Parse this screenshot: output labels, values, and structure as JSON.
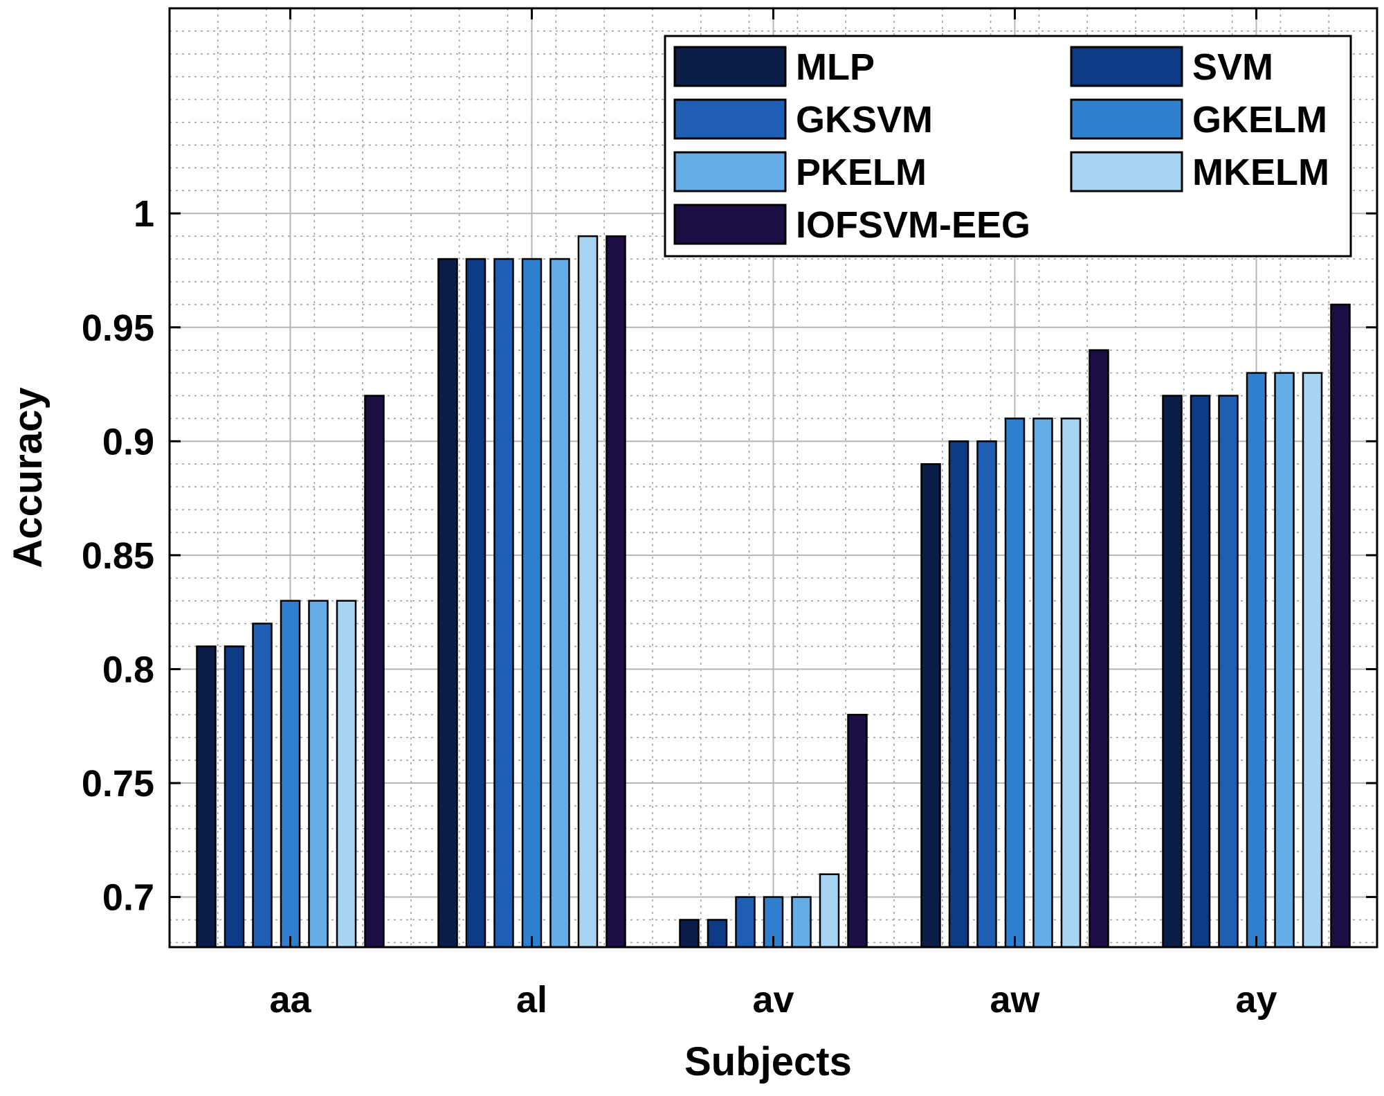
{
  "chart_data": {
    "type": "bar",
    "title": "",
    "xlabel": "Subjects",
    "ylabel": "Accuracy",
    "categories": [
      "aa",
      "al",
      "av",
      "aw",
      "ay"
    ],
    "ylim": [
      0.678,
      1.09
    ],
    "yticks": [
      0.7,
      0.75,
      0.8,
      0.85,
      0.9,
      0.95,
      1.0
    ],
    "ytick_labels": [
      "0.7",
      "0.75",
      "0.8",
      "0.85",
      "0.9",
      "0.95",
      "1"
    ],
    "grid": true,
    "minor_grid": true,
    "legend_position": "top-right",
    "series": [
      {
        "name": "MLP",
        "color": "#0b1e4a",
        "values": [
          0.81,
          0.98,
          0.69,
          0.89,
          0.92
        ]
      },
      {
        "name": "SVM",
        "color": "#0d3a84",
        "values": [
          0.81,
          0.98,
          0.69,
          0.9,
          0.92
        ]
      },
      {
        "name": "GKSVM",
        "color": "#1f5fb3",
        "values": [
          0.82,
          0.98,
          0.7,
          0.9,
          0.92
        ]
      },
      {
        "name": "GKELM",
        "color": "#2f7fcf",
        "values": [
          0.83,
          0.98,
          0.7,
          0.91,
          0.93
        ]
      },
      {
        "name": "PKELM",
        "color": "#64ade6",
        "values": [
          0.83,
          0.98,
          0.7,
          0.91,
          0.93
        ]
      },
      {
        "name": "MKELM",
        "color": "#a8d4f4",
        "values": [
          0.83,
          0.99,
          0.71,
          0.91,
          0.93
        ]
      },
      {
        "name": "IOFSVM-EEG",
        "color": "#1c0d45",
        "values": [
          0.92,
          0.99,
          0.78,
          0.94,
          0.96
        ]
      }
    ]
  }
}
